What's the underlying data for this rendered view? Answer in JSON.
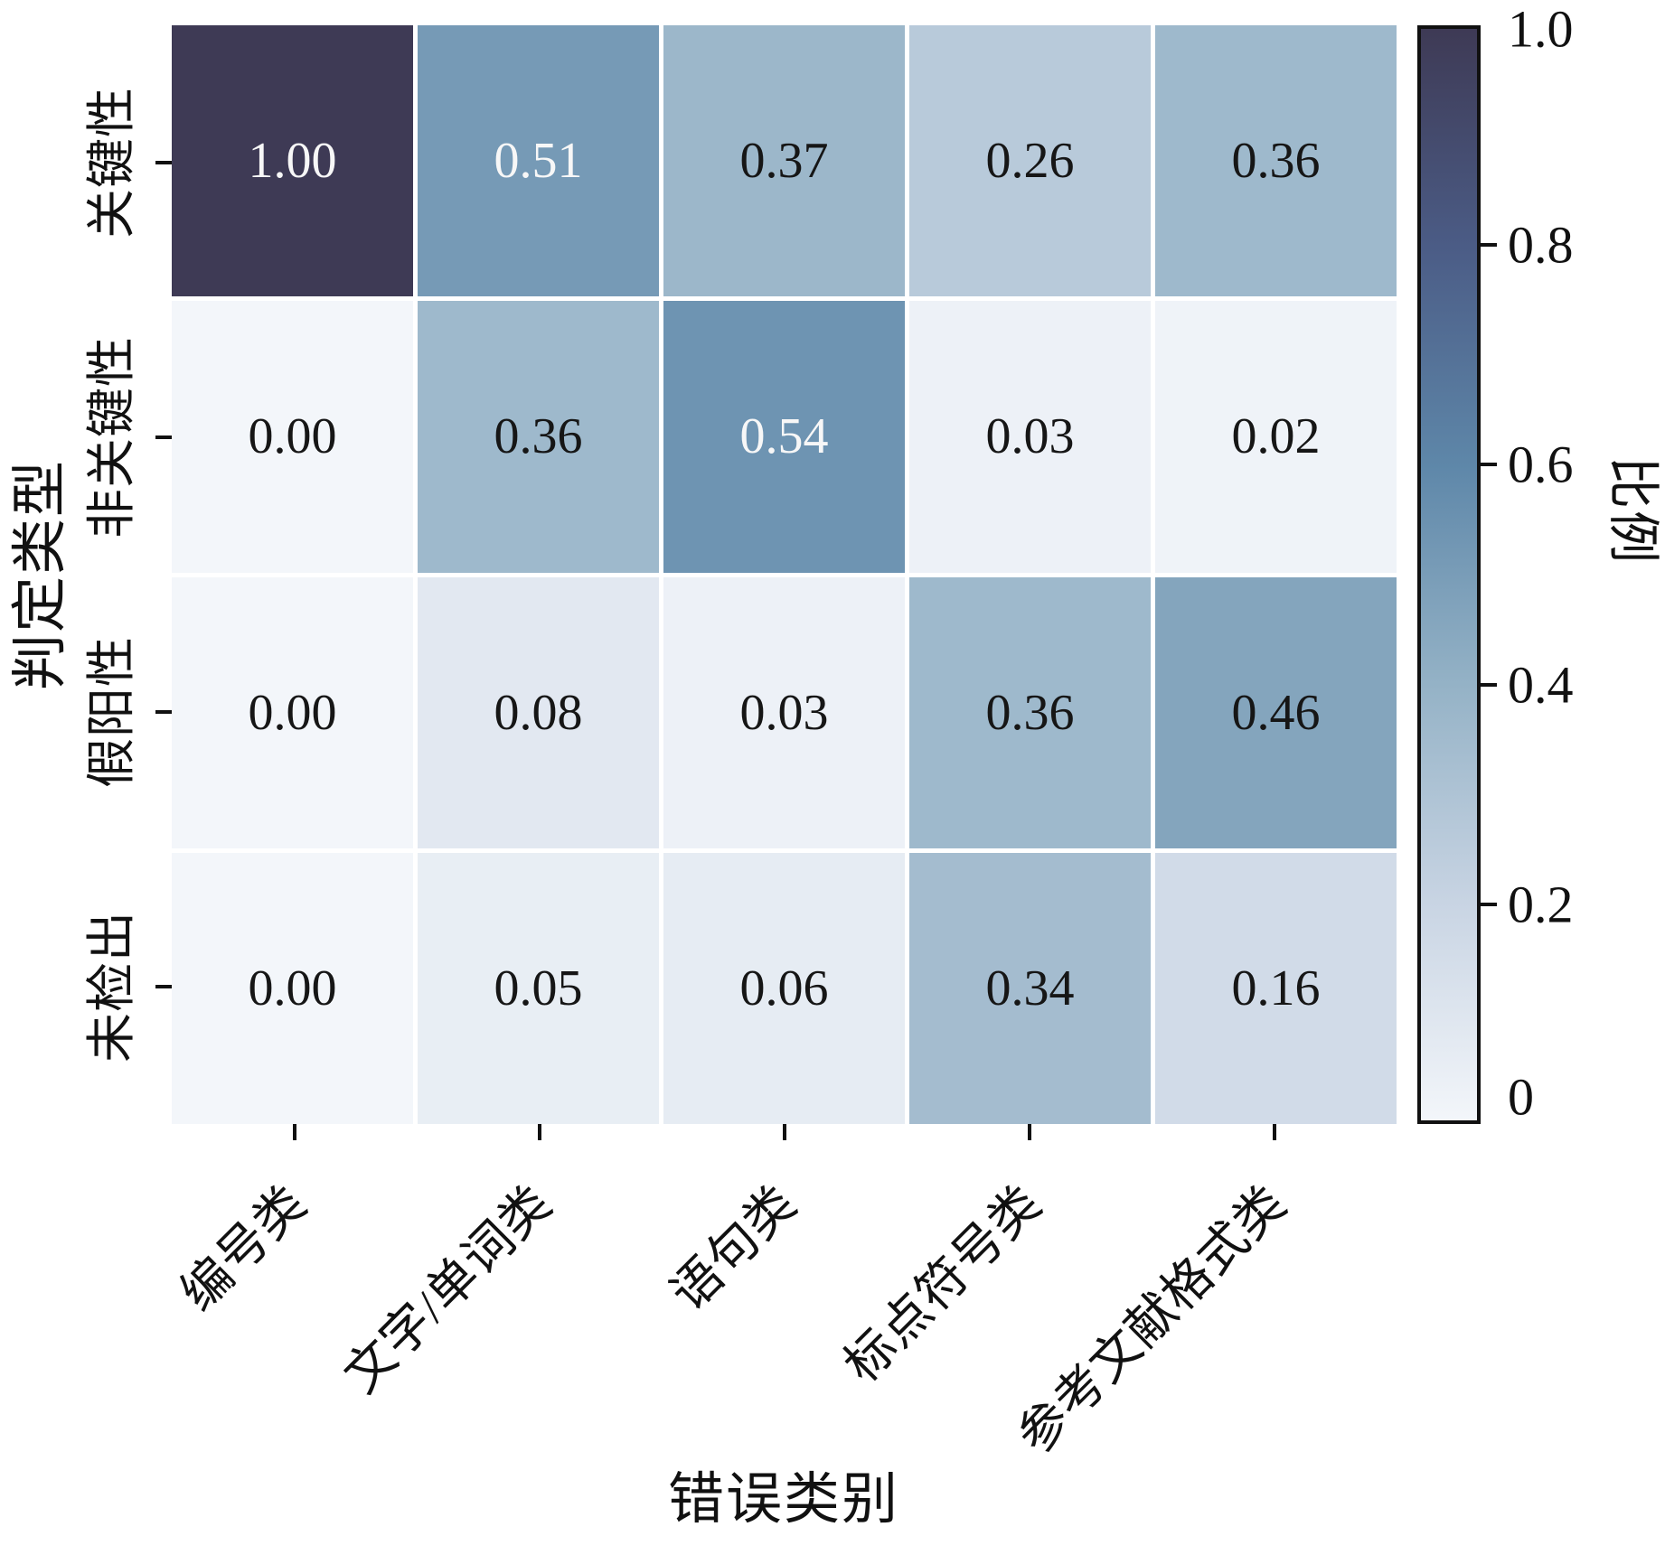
{
  "chart_data": {
    "type": "heatmap",
    "xlabel": "错误类别",
    "ylabel": "判定类型",
    "x_categories": [
      "编号类",
      "文字/单词类",
      "语句类",
      "标点符号类",
      "参考文献格式类"
    ],
    "y_categories": [
      "关键性",
      "非关键性",
      "假阳性",
      "未检出"
    ],
    "values": [
      [
        1.0,
        0.51,
        0.37,
        0.26,
        0.36
      ],
      [
        0.0,
        0.36,
        0.54,
        0.03,
        0.02
      ],
      [
        0.0,
        0.08,
        0.03,
        0.36,
        0.46
      ],
      [
        0.0,
        0.05,
        0.06,
        0.34,
        0.16
      ]
    ],
    "value_decimals": 2,
    "grid_gap": true,
    "legend_position": "right",
    "colorbar": {
      "label": "比例",
      "min": 0,
      "max": 1,
      "ticks": [
        {
          "value": 1.0,
          "label": "1.0"
        },
        {
          "value": 0.8,
          "label": "0.8"
        },
        {
          "value": 0.6,
          "label": "0.6"
        },
        {
          "value": 0.4,
          "label": "0.4"
        },
        {
          "value": 0.2,
          "label": "0.2"
        },
        {
          "value": 0.0,
          "label": "0"
        }
      ]
    },
    "colormap_stops": [
      {
        "v": 0.0,
        "color": "#f3f6fa"
      },
      {
        "v": 0.2,
        "color": "#c8d4e3"
      },
      {
        "v": 0.4,
        "color": "#94b2c6"
      },
      {
        "v": 0.6,
        "color": "#5e87a9"
      },
      {
        "v": 0.8,
        "color": "#4b5c86"
      },
      {
        "v": 1.0,
        "color": "#3e3a55"
      }
    ],
    "annotation_colors": {
      "dark": "#161616",
      "light": "#f7f7f7",
      "light_threshold": 0.5
    }
  }
}
